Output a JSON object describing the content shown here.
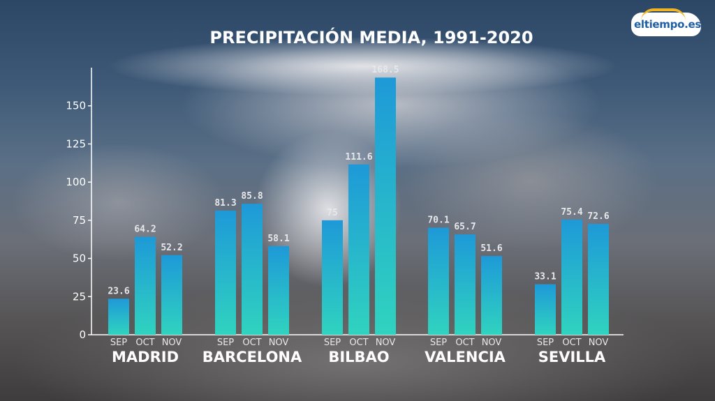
{
  "brand": {
    "logo_text": "eltiempo.es"
  },
  "colors": {
    "bar_top": "#1e99d8",
    "bar_bottom": "#30d3bf",
    "axis": "#ffffff",
    "text": "#ffffff"
  },
  "chart_data": {
    "type": "bar",
    "title": "PRECIPITACIÓN MEDIA, 1991-2020",
    "xlabel": "",
    "ylabel": "",
    "ylim": [
      0,
      175
    ],
    "yticks": [
      0,
      25,
      50,
      75,
      100,
      125,
      150
    ],
    "grid": false,
    "groups": [
      {
        "city": "MADRID",
        "months": [
          "SEP",
          "OCT",
          "NOV"
        ],
        "values": [
          23.6,
          64.2,
          52.2
        ]
      },
      {
        "city": "BARCELONA",
        "months": [
          "SEP",
          "OCT",
          "NOV"
        ],
        "values": [
          81.3,
          85.8,
          58.1
        ]
      },
      {
        "city": "BILBAO",
        "months": [
          "SEP",
          "OCT",
          "NOV"
        ],
        "values": [
          75,
          111.6,
          168.5
        ]
      },
      {
        "city": "VALENCIA",
        "months": [
          "SEP",
          "OCT",
          "NOV"
        ],
        "values": [
          70.1,
          65.7,
          51.6
        ]
      },
      {
        "city": "SEVILLA",
        "months": [
          "SEP",
          "OCT",
          "NOV"
        ],
        "values": [
          33.1,
          75.4,
          72.6
        ]
      }
    ]
  }
}
